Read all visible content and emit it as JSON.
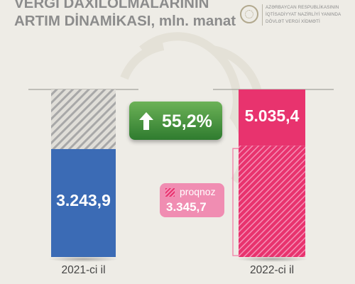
{
  "header": {
    "title_line1": "VERGİ DAXİLOLMALARININ",
    "title_line2": "ARTIM DİNAMİKASI, mln. manat",
    "org_line1": "AZƏRBAYCAN RESPUBLİKASININ",
    "org_line2": "İQTİSADİYYAT NAZİRLİYİ YANINDA",
    "org_line3": "DÖVLƏT VERGİ XİDMƏTİ"
  },
  "colors": {
    "background": "#eeece6",
    "bar_2021": "#3b6bb5",
    "bar_2022": "#e8336e",
    "forecast_hatch": "#f591b7",
    "growth_badge": "#3f8a35",
    "title_text": "#8c8c8c"
  },
  "chart_data": {
    "type": "bar",
    "categories": [
      "2021-ci il",
      "2022-ci il"
    ],
    "values": [
      3243.9,
      5035.4
    ],
    "value_labels": [
      "3.243,9",
      "5.035,4"
    ],
    "forecast": {
      "label": "proqnoz",
      "category": "2022-ci il",
      "value": 3345.7,
      "value_label": "3.345,7"
    },
    "growth": {
      "value": 55.2,
      "label": "55,2%",
      "direction": "up"
    },
    "ylim": [
      0,
      5035.4
    ],
    "grid": false,
    "legend": "none"
  }
}
